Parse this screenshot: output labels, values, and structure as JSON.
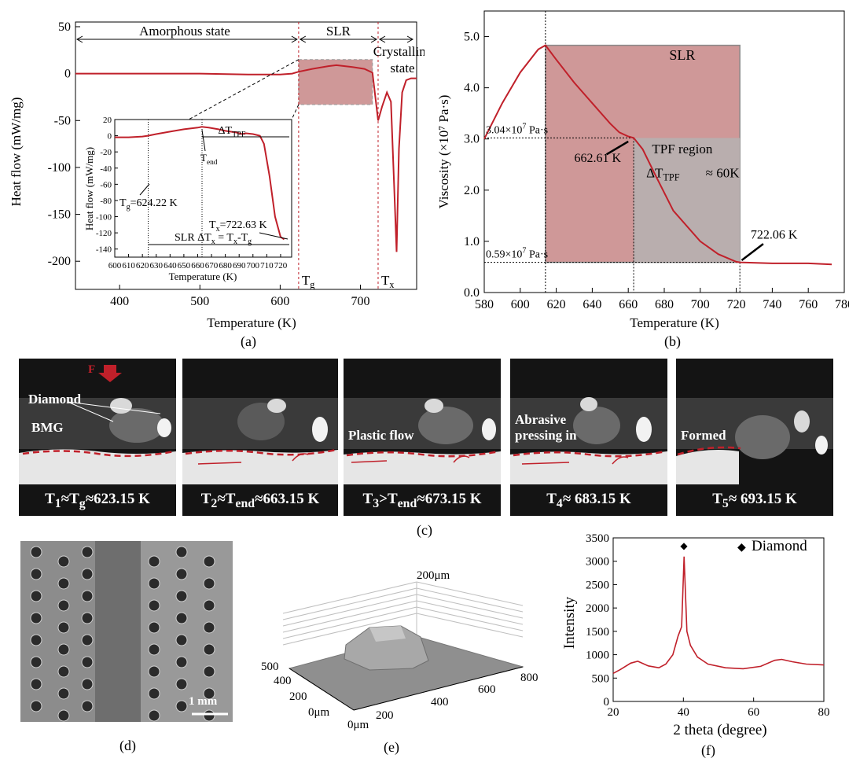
{
  "chart_data": [
    {
      "panel": "a",
      "type": "line",
      "xlabel": "Temperature (K)",
      "ylabel": "Heat flow (mW/mg)",
      "xlim": [
        345,
        770
      ],
      "ylim": [
        -230,
        55
      ],
      "x_ticks": [
        400,
        500,
        600,
        700
      ],
      "y_ticks": [
        50,
        0,
        -50,
        -100,
        -150,
        -200
      ],
      "regions": [
        "Amorphous state",
        "SLR",
        "Crystalline state"
      ],
      "markers": [
        "Tg",
        "Tx"
      ],
      "markers_at": [
        623,
        722
      ],
      "series": [
        {
          "x": [
            345,
            400,
            500,
            560,
            600,
            615,
            623,
            640,
            660,
            670,
            690,
            705,
            715,
            720,
            722,
            727,
            733,
            738,
            742,
            745,
            748,
            752,
            757,
            763,
            770
          ],
          "y": [
            0,
            0,
            0,
            -1,
            -1,
            0,
            2,
            5,
            8,
            9,
            7,
            5,
            1,
            -35,
            -50,
            -35,
            -20,
            -30,
            -120,
            -190,
            -80,
            -20,
            -7,
            -5,
            -5
          ]
        }
      ],
      "inset": {
        "xlabel": "Temperature (K)",
        "ylabel": "Heat flow (mW/mg)",
        "xlim": [
          600,
          728
        ],
        "ylim": [
          -150,
          20
        ],
        "x_ticks": [
          600,
          610,
          620,
          630,
          640,
          650,
          660,
          670,
          680,
          690,
          700,
          710,
          720
        ],
        "y_ticks": [
          20,
          0,
          -20,
          -40,
          -60,
          -80,
          -100,
          -120,
          -140
        ],
        "annotations": [
          "ΔT",
          "TPF",
          "T",
          "end",
          "T",
          "g",
          "=624.22 K",
          "T",
          "x",
          "=722.63 K",
          "SLR ΔT",
          "x",
          " = T",
          "x",
          "-T",
          "g"
        ],
        "series": [
          {
            "x": [
              600,
              610,
              620,
              624,
              630,
              640,
              650,
              660,
              663,
              668,
              675,
              680,
              688,
              692,
              695,
              700,
              705,
              708,
              712,
              716,
              720,
              722.6
            ],
            "y": [
              -2,
              -2,
              -1,
              0,
              2,
              5,
              8,
              10,
              11,
              10,
              8,
              6,
              4,
              2,
              3,
              2,
              0,
              -10,
              -50,
              -100,
              -125,
              -128
            ]
          }
        ]
      }
    },
    {
      "panel": "b",
      "type": "line",
      "xlabel": "Temperature (K)",
      "ylabel": "Viscosity (×10⁷ Pa·s)",
      "xlim": [
        580,
        780
      ],
      "ylim": [
        0,
        5.5
      ],
      "x_ticks": [
        580,
        600,
        620,
        640,
        660,
        680,
        700,
        720,
        740,
        760,
        780
      ],
      "y_ticks": [
        0.0,
        1.0,
        2.0,
        3.0,
        4.0,
        5.0
      ],
      "annotations": [
        "SLR",
        "3.04×10",
        "7",
        " Pa·s",
        "662.61 K",
        "TPF region",
        "ΔT",
        "TPF",
        " ≈ 60K",
        "0.59×10",
        "7",
        " Pa·s",
        "722.06 K"
      ],
      "series": [
        {
          "x": [
            580,
            590,
            600,
            610,
            614,
            620,
            630,
            640,
            650,
            655,
            660,
            663,
            668,
            675,
            685,
            700,
            710,
            720,
            722,
            740,
            760,
            773
          ],
          "y": [
            3.0,
            3.7,
            4.3,
            4.75,
            4.83,
            4.55,
            4.1,
            3.7,
            3.3,
            3.13,
            3.05,
            3.02,
            2.8,
            2.3,
            1.6,
            1.0,
            0.75,
            0.6,
            0.59,
            0.57,
            0.57,
            0.55
          ]
        }
      ]
    },
    {
      "panel": "e",
      "type": "surface3d",
      "z_unit_label": "200",
      "z_unit": "μm",
      "left_axis_ticks": [
        "500",
        "400",
        "200",
        "0"
      ],
      "left_axis_unit": "μm",
      "right_axis_ticks": [
        "0",
        "200",
        "400",
        "600",
        "800"
      ],
      "right_axis_unit": "μm"
    },
    {
      "panel": "f",
      "type": "line",
      "xlabel": "2 theta (degree)",
      "ylabel": "Intensity",
      "xlim": [
        20,
        80
      ],
      "ylim": [
        0,
        3500
      ],
      "x_ticks": [
        20,
        40,
        60,
        80
      ],
      "y_ticks": [
        0,
        500,
        1000,
        1500,
        2000,
        2500,
        3000,
        3500
      ],
      "legend": "Diamond",
      "series": [
        {
          "x": [
            20,
            22,
            25,
            27,
            30,
            33,
            35,
            37,
            38.5,
            39.5,
            40.2,
            41,
            42,
            44,
            47,
            52,
            57,
            62,
            66,
            68,
            71,
            75,
            80
          ],
          "y": [
            600,
            680,
            820,
            860,
            760,
            720,
            800,
            1000,
            1400,
            1600,
            3100,
            1500,
            1200,
            950,
            800,
            720,
            700,
            750,
            880,
            900,
            850,
            800,
            780
          ]
        }
      ]
    }
  ],
  "captions": {
    "a": "(a)",
    "b": "(b)",
    "c": "(c)",
    "d": "(d)",
    "e": "(e)",
    "f": "(f)"
  },
  "frames": [
    {
      "label_pre": "T",
      "sub1": "1",
      "label_mid": "≈T",
      "sub2": "g",
      "label_post": "≈623.15 K"
    },
    {
      "label_pre": "T",
      "sub1": "2",
      "label_mid": "≈T",
      "sub2": "end",
      "label_post": "≈663.15 K"
    },
    {
      "label_pre": "T",
      "sub1": "3",
      "label_mid": ">T",
      "sub2": "end",
      "label_post": "≈673.15 K"
    },
    {
      "label_pre": "T",
      "sub1": "4",
      "label_mid": "",
      "sub2": "",
      "label_post": "≈ 683.15 K"
    },
    {
      "label_pre": "T",
      "sub1": "5",
      "label_mid": "",
      "sub2": "",
      "label_post": "≈ 693.15 K"
    }
  ],
  "frame_text": {
    "force": "F",
    "diamond": "Diamond",
    "bmg": "BMG",
    "plastic": "Plastic flow",
    "abrasive1": "Abrasive",
    "abrasive2": "pressing in",
    "formed": "Formed"
  },
  "micrograph": {
    "scale_bar": "1 mm"
  },
  "xrd": {
    "legend_marker": "◆",
    "legend": "Diamond",
    "peak_marker": "◆"
  }
}
